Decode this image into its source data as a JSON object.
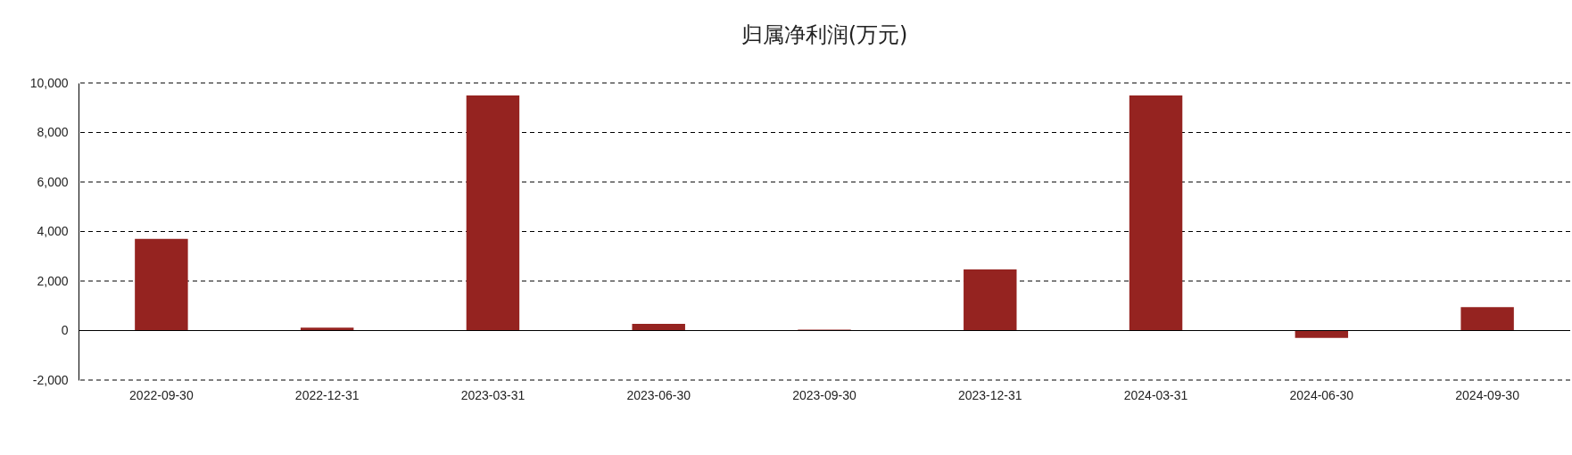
{
  "chart_data": {
    "type": "bar",
    "title": "归属净利润(万元)",
    "categories": [
      "2022-09-30",
      "2022-12-31",
      "2023-03-31",
      "2023-06-30",
      "2023-09-30",
      "2023-12-31",
      "2024-03-31",
      "2024-06-30",
      "2024-09-30"
    ],
    "values": [
      3700,
      120,
      9500,
      270,
      40,
      2470,
      9500,
      -300,
      950
    ],
    "color": "#952320",
    "ylim": [
      -2000,
      10000
    ],
    "yticks": [
      {
        "value": -2000,
        "label": "-2,000"
      },
      0,
      {
        "value": 2000,
        "label": "2,000"
      },
      {
        "value": 4000,
        "label": "4,000"
      },
      {
        "value": 6000,
        "label": "6,000"
      },
      {
        "value": 8000,
        "label": "8,000"
      },
      {
        "value": 10000,
        "label": "10,000"
      }
    ],
    "grid": "y"
  }
}
